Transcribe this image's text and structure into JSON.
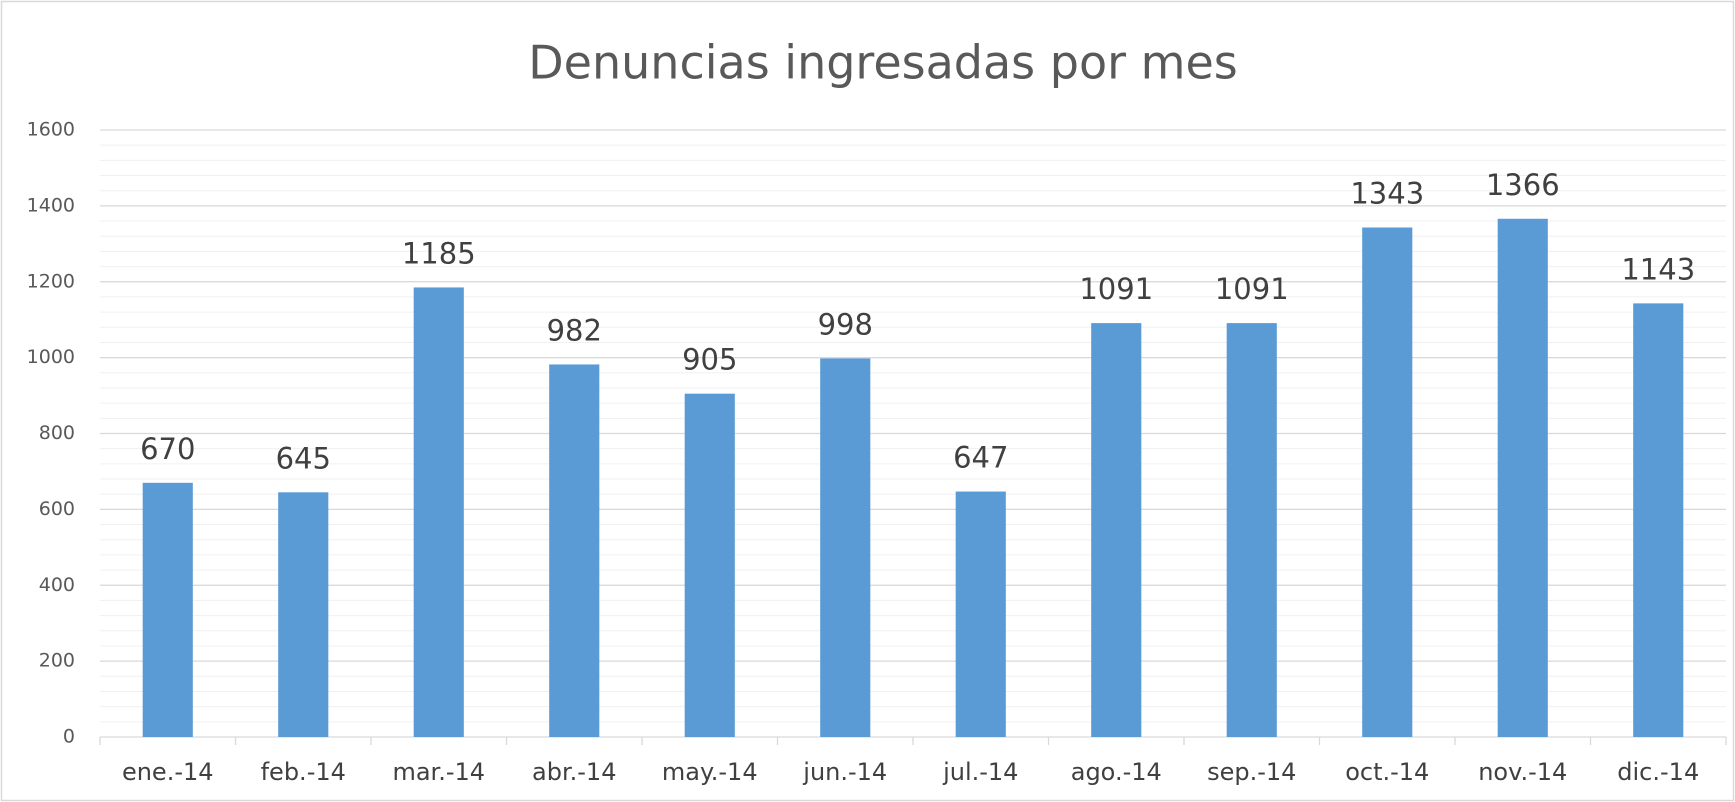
{
  "chart_data": {
    "type": "bar",
    "title": "Denuncias ingresadas por mes",
    "categories": [
      "ene.-14",
      "feb.-14",
      "mar.-14",
      "abr.-14",
      "may.-14",
      "jun.-14",
      "jul.-14",
      "ago.-14",
      "sep.-14",
      "oct.-14",
      "nov.-14",
      "dic.-14"
    ],
    "values": [
      670,
      645,
      1185,
      982,
      905,
      998,
      647,
      1091,
      1091,
      1343,
      1366,
      1143
    ],
    "color": "#5b9bd5",
    "ylim": [
      0,
      1600
    ],
    "yticks": [
      0,
      200,
      400,
      600,
      800,
      1000,
      1200,
      1400,
      1600
    ],
    "grid": true,
    "minor_grid_step": 40,
    "data_labels": true
  }
}
